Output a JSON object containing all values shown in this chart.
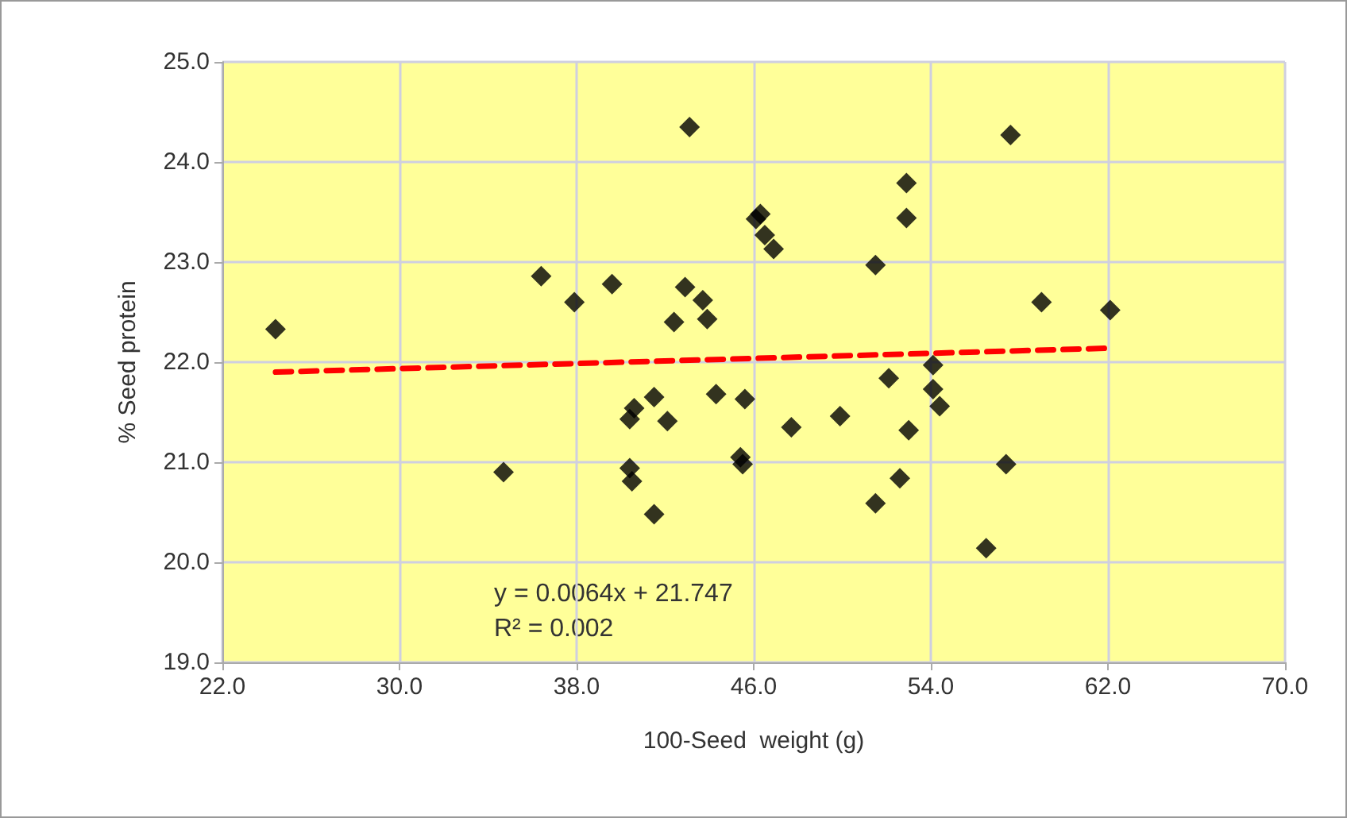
{
  "chart_data": {
    "type": "scatter",
    "xlabel": "100-Seed  weight (g)",
    "ylabel": "% Seed protein",
    "series": [
      {
        "color": "#000000",
        "marker": "diamond",
        "x": [
          24.4,
          34.7,
          36.4,
          37.9,
          39.6,
          40.4,
          40.6,
          40.4,
          40.5,
          41.5,
          41.5,
          42.1,
          42.4,
          42.9,
          43.1,
          43.7,
          43.9,
          44.3,
          45.4,
          45.5,
          45.6,
          46.1,
          46.3,
          46.5,
          46.9,
          47.7,
          49.9,
          51.5,
          51.5,
          52.1,
          52.6,
          52.9,
          52.9,
          53.0,
          54.1,
          54.1,
          54.4,
          56.5,
          57.4,
          57.6,
          59.0,
          62.1
        ],
        "values": [
          22.33,
          20.9,
          22.86,
          22.6,
          22.78,
          21.43,
          21.54,
          20.94,
          20.81,
          21.65,
          20.48,
          21.41,
          22.4,
          22.75,
          24.35,
          22.62,
          22.43,
          21.68,
          21.05,
          20.98,
          21.63,
          23.43,
          23.48,
          23.27,
          23.13,
          21.35,
          21.46,
          22.97,
          20.59,
          21.84,
          20.84,
          23.79,
          23.44,
          21.32,
          21.97,
          21.73,
          21.56,
          20.14,
          20.98,
          24.27,
          22.6,
          22.52
        ]
      },
      {
        "type": "line",
        "color": "#ff0000",
        "line_style": "dashed",
        "marker": "none",
        "x": [
          24.4,
          62.1
        ],
        "values": [
          21.9,
          22.14
        ]
      }
    ],
    "xlim": [
      22,
      70
    ],
    "xticks": [
      {
        "value": 22,
        "label": "22.0"
      },
      {
        "value": 30,
        "label": "30.0"
      },
      {
        "value": 38,
        "label": "38.0"
      },
      {
        "value": 46,
        "label": "46.0"
      },
      {
        "value": 54,
        "label": "54.0"
      },
      {
        "value": 62,
        "label": "62.0"
      },
      {
        "value": 70,
        "label": "70.0"
      }
    ],
    "ylim": [
      19,
      25
    ],
    "yticks": [
      {
        "value": 19,
        "label": "19.0"
      },
      {
        "value": 20,
        "label": "20.0"
      },
      {
        "value": 21,
        "label": "21.0"
      },
      {
        "value": 22,
        "label": "22.0"
      },
      {
        "value": 23,
        "label": "23.0"
      },
      {
        "value": 24,
        "label": "24.0"
      },
      {
        "value": 25,
        "label": "25.0"
      }
    ],
    "grid": true,
    "annotations": [
      "y = 0.0064x + 21.747",
      "R² = 0.002"
    ]
  }
}
